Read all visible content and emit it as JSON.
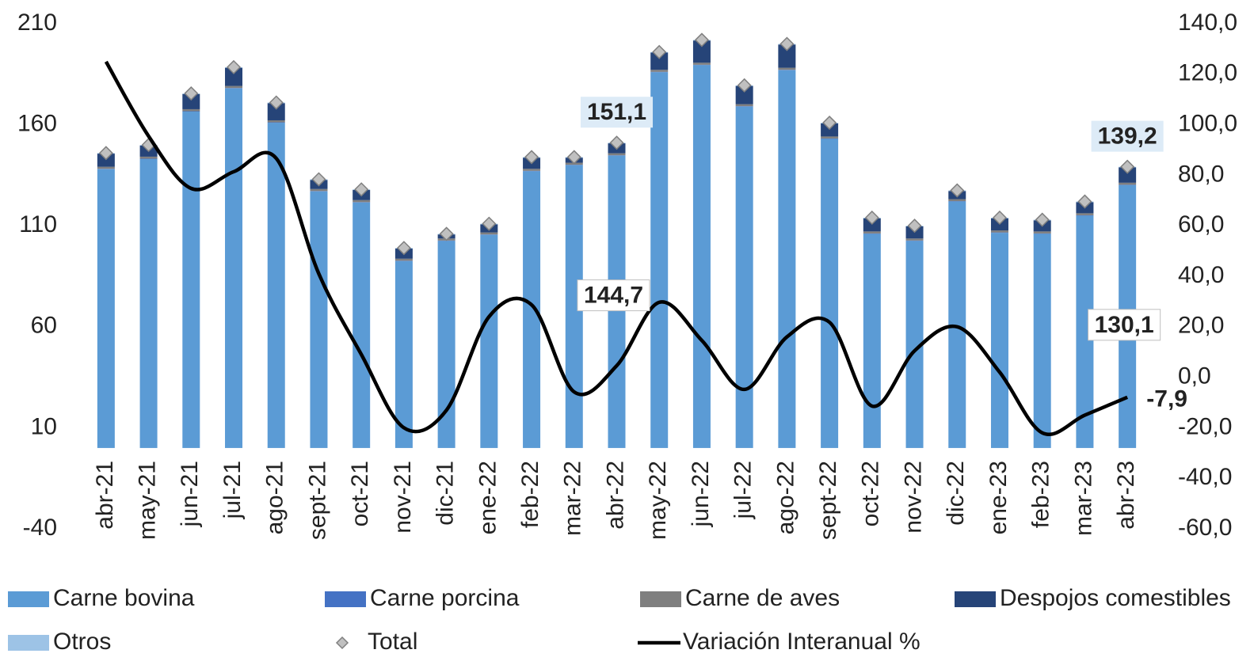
{
  "chart_data": {
    "type": "bar",
    "categories": [
      "abr-21",
      "may-21",
      "jun-21",
      "jul-21",
      "ago-21",
      "sept-21",
      "oct-21",
      "nov-21",
      "dic-21",
      "ene-22",
      "feb-22",
      "mar-22",
      "abr-22",
      "may-22",
      "jun-22",
      "jul-22",
      "ago-22",
      "sept-22",
      "oct-22",
      "nov-22",
      "dic-22",
      "ene-23",
      "feb-23",
      "mar-23",
      "abr-23"
    ],
    "ylim": [
      -40,
      210
    ],
    "yticks": [
      210,
      160,
      110,
      60,
      10,
      -40
    ],
    "y2lim": [
      -60,
      140
    ],
    "y2ticks": [
      {
        "value": 140,
        "label": "140,0"
      },
      {
        "value": 120,
        "label": "120,0"
      },
      {
        "value": 100,
        "label": "100,0"
      },
      {
        "value": 80,
        "label": "80,0"
      },
      {
        "value": 60,
        "label": "60,0"
      },
      {
        "value": 40,
        "label": "40,0"
      },
      {
        "value": 20,
        "label": "20,0"
      },
      {
        "value": 0,
        "label": "0,0"
      },
      {
        "value": -20,
        "label": "-20,0"
      },
      {
        "value": -40,
        "label": "-40,0"
      },
      {
        "value": -60,
        "label": "-60,0"
      }
    ],
    "series": [
      {
        "name": "Carne bovina",
        "type": "bar",
        "color": "#5b9bd5",
        "values": [
          138,
          143,
          166.5,
          178,
          161,
          127,
          121.5,
          92.5,
          102.5,
          105.5,
          137,
          140,
          144.7,
          186,
          189.5,
          169,
          187,
          153,
          106,
          102.5,
          122,
          106.5,
          106,
          115,
          130.1
        ],
        "value_labels": [
          null,
          null,
          null,
          null,
          null,
          null,
          null,
          null,
          null,
          null,
          null,
          null,
          "144,7",
          null,
          null,
          null,
          null,
          null,
          null,
          null,
          null,
          null,
          null,
          null,
          "130,1"
        ]
      },
      {
        "name": "Carne porcina",
        "type": "bar",
        "color": "#4472c4",
        "values": [
          0.2,
          0.2,
          0.2,
          0.2,
          0.2,
          0.2,
          0.2,
          0.2,
          0.2,
          0.2,
          0.2,
          0.2,
          0.2,
          0.2,
          0.2,
          0.2,
          0.2,
          0.2,
          0.2,
          0.2,
          0.2,
          0.2,
          0.2,
          0.2,
          0.2
        ]
      },
      {
        "name": "Carne de aves",
        "type": "bar",
        "color": "#7f7f7f",
        "values": [
          1,
          1,
          1,
          1,
          1,
          1,
          1,
          1,
          1,
          1,
          1,
          1,
          1,
          1,
          1,
          1,
          1,
          1,
          1,
          1,
          1,
          1,
          1,
          1,
          1
        ]
      },
      {
        "name": "Despojos comestibles",
        "type": "bar",
        "color": "#264478",
        "values": [
          6.5,
          5.5,
          7.5,
          9,
          8.5,
          4.5,
          5,
          5,
          2,
          4,
          5.5,
          2.5,
          4.9,
          8.5,
          11,
          9,
          11.5,
          6.5,
          6.5,
          6,
          4,
          6,
          5.5,
          5.5,
          7.6
        ]
      },
      {
        "name": "Otros",
        "type": "bar",
        "color": "#9dc3e6",
        "values": [
          0.3,
          0.3,
          0.3,
          0.3,
          0.3,
          0.3,
          0.3,
          0.3,
          0.3,
          0.3,
          0.3,
          0.3,
          0.3,
          0.3,
          0.3,
          0.3,
          0.3,
          0.3,
          0.3,
          0.3,
          0.3,
          0.3,
          0.3,
          0.3,
          0.3
        ]
      },
      {
        "name": "Total",
        "type": "scatter",
        "color": "#c0c0c0",
        "values": [
          146,
          150,
          175.5,
          188.5,
          171,
          133,
          128,
          99,
          106,
          111,
          144,
          144,
          151.1,
          196,
          202,
          179.5,
          200,
          161,
          114,
          110,
          127.5,
          114,
          113,
          122,
          139.2
        ],
        "value_labels": [
          null,
          null,
          null,
          null,
          null,
          null,
          null,
          null,
          null,
          null,
          null,
          null,
          "151,1",
          null,
          null,
          null,
          null,
          null,
          null,
          null,
          null,
          null,
          null,
          null,
          "139,2"
        ]
      },
      {
        "name": "Variación Interanual %",
        "type": "line",
        "axis": "y2",
        "color": "#000000",
        "values": [
          125,
          95.5,
          74.8,
          81.4,
          86.7,
          41,
          9,
          -20,
          -13,
          24,
          28.7,
          -5.8,
          4.6,
          29.7,
          14.6,
          -4.8,
          16,
          21.8,
          -11.4,
          10.5,
          20,
          2,
          -22,
          -15,
          -7.9
        ],
        "value_labels": [
          null,
          null,
          null,
          null,
          null,
          null,
          null,
          null,
          null,
          null,
          null,
          null,
          null,
          null,
          null,
          null,
          null,
          null,
          null,
          null,
          null,
          null,
          null,
          null,
          "-7,9"
        ]
      }
    ]
  }
}
